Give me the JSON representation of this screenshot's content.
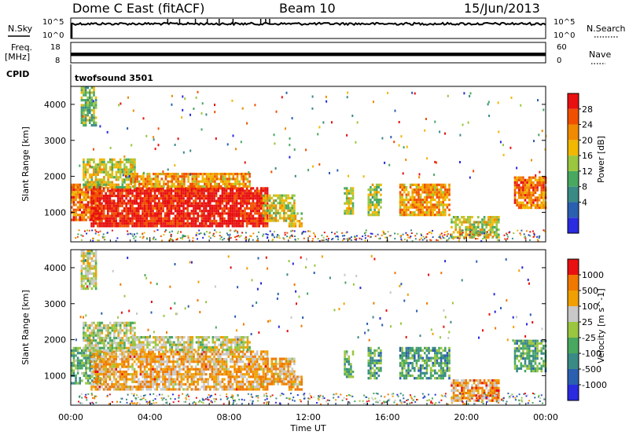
{
  "header": {
    "station": "Dome C East (fitACF)",
    "beam": "Beam 10",
    "date": "15/Jun/2013"
  },
  "left_labels": {
    "nsky": "N.Sky",
    "freq": "Freq.",
    "mhz": "[MHz]",
    "cpid": "CPID"
  },
  "right_labels": {
    "nsearch": "N.Search",
    "nave": "Nave"
  },
  "cpid_text": "twofsound 3501",
  "colors": {
    "power": [
      "#2a2ae0",
      "#2b5fb0",
      "#3a8a86",
      "#48a860",
      "#9ac640",
      "#f0b800",
      "#f08a00",
      "#f05000",
      "#e81010"
    ],
    "velocity": [
      "#2a2ae0",
      "#2b5fb0",
      "#3a8a86",
      "#48a860",
      "#9ac640",
      "#c8c8c8",
      "#f0a000",
      "#f07800",
      "#e81010"
    ]
  },
  "chart_data": [
    {
      "type": "line",
      "panel": "nsky-nsearch",
      "ylabel": "N.Sky",
      "yticks": [
        "10^5",
        "10^0"
      ],
      "right_label": "N.Search",
      "right_yticks": [
        "10^5",
        "10^0"
      ],
      "xlim": [
        0,
        24
      ],
      "level_fraction": 0.28,
      "spikes_hours": [
        4.9,
        5.5,
        6.3,
        6.9,
        7.5,
        8.2,
        9.6,
        9.85,
        10.05
      ]
    },
    {
      "type": "line",
      "panel": "freq-nave",
      "ylabel": "Freq. [MHz]",
      "yticks": [
        18,
        8
      ],
      "right_label": "Nave",
      "right_yticks": [
        60,
        0
      ],
      "xlim": [
        0,
        24
      ],
      "band": [
        11,
        13
      ]
    },
    {
      "type": "heatmap",
      "panel": "power",
      "xlabel": "",
      "ylabel": "Slant Range [km]",
      "xlim": [
        0,
        24
      ],
      "ylim": [
        180,
        4500
      ],
      "yticks": [
        1000,
        2000,
        3000,
        4000
      ],
      "colorbar_label": "Power [dB]",
      "colorbar_ticks": [
        28,
        24,
        20,
        16,
        12,
        8,
        4
      ],
      "regions": [
        {
          "x": [
            0.0,
            1.5
          ],
          "y": [
            800,
            1800
          ],
          "level": 0.78
        },
        {
          "x": [
            1.0,
            9.9
          ],
          "y": [
            600,
            1700
          ],
          "level": 0.95
        },
        {
          "x": [
            0.6,
            3.2
          ],
          "y": [
            1700,
            2500
          ],
          "level": 0.55
        },
        {
          "x": [
            3.0,
            9.0
          ],
          "y": [
            1700,
            2100
          ],
          "level": 0.7
        },
        {
          "x": [
            9.7,
            11.3
          ],
          "y": [
            800,
            1500
          ],
          "level": 0.55
        },
        {
          "x": [
            11.0,
            11.7
          ],
          "y": [
            600,
            1000
          ],
          "level": 0.6
        },
        {
          "x": [
            13.8,
            14.3
          ],
          "y": [
            1000,
            1700
          ],
          "level": 0.55
        },
        {
          "x": [
            15.0,
            15.7
          ],
          "y": [
            900,
            1800
          ],
          "level": 0.5
        },
        {
          "x": [
            16.6,
            19.1
          ],
          "y": [
            900,
            1800
          ],
          "level": 0.7
        },
        {
          "x": [
            19.2,
            21.6
          ],
          "y": [
            300,
            900
          ],
          "level": 0.55
        },
        {
          "x": [
            22.4,
            24.0
          ],
          "y": [
            1100,
            2000
          ],
          "level": 0.75
        },
        {
          "x": [
            0.5,
            1.3
          ],
          "y": [
            3400,
            4500
          ],
          "level": 0.45
        }
      ]
    },
    {
      "type": "heatmap",
      "panel": "velocity",
      "xlabel": "Time UT",
      "ylabel": "Slant Range [km]",
      "xlim": [
        0,
        24
      ],
      "ylim": [
        180,
        4500
      ],
      "yticks": [
        1000,
        2000,
        3000,
        4000
      ],
      "xticks": [
        "00:00",
        "04:00",
        "08:00",
        "12:00",
        "16:00",
        "20:00",
        "00:00"
      ],
      "colorbar_label": "Velocity [m s^-1]",
      "colorbar_ticks": [
        1000,
        500,
        100,
        25,
        -25,
        -100,
        -500,
        -1000
      ],
      "regions": [
        {
          "x": [
            0.0,
            1.5
          ],
          "y": [
            800,
            1800
          ],
          "level": 0.4
        },
        {
          "x": [
            1.0,
            9.9
          ],
          "y": [
            600,
            1700
          ],
          "level": 0.72
        },
        {
          "x": [
            0.6,
            3.2
          ],
          "y": [
            1700,
            2500
          ],
          "level": 0.55
        },
        {
          "x": [
            3.0,
            9.0
          ],
          "y": [
            1700,
            2100
          ],
          "level": 0.58
        },
        {
          "x": [
            9.7,
            11.3
          ],
          "y": [
            800,
            1500
          ],
          "level": 0.72
        },
        {
          "x": [
            11.0,
            11.7
          ],
          "y": [
            600,
            1000
          ],
          "level": 0.7
        },
        {
          "x": [
            13.8,
            14.3
          ],
          "y": [
            1000,
            1700
          ],
          "level": 0.4
        },
        {
          "x": [
            15.0,
            15.7
          ],
          "y": [
            900,
            1800
          ],
          "level": 0.35
        },
        {
          "x": [
            16.6,
            19.1
          ],
          "y": [
            900,
            1800
          ],
          "level": 0.35
        },
        {
          "x": [
            19.2,
            21.6
          ],
          "y": [
            300,
            900
          ],
          "level": 0.75
        },
        {
          "x": [
            22.4,
            24.0
          ],
          "y": [
            1100,
            2000
          ],
          "level": 0.38
        },
        {
          "x": [
            0.5,
            1.3
          ],
          "y": [
            3400,
            4500
          ],
          "level": 0.58
        }
      ]
    }
  ]
}
